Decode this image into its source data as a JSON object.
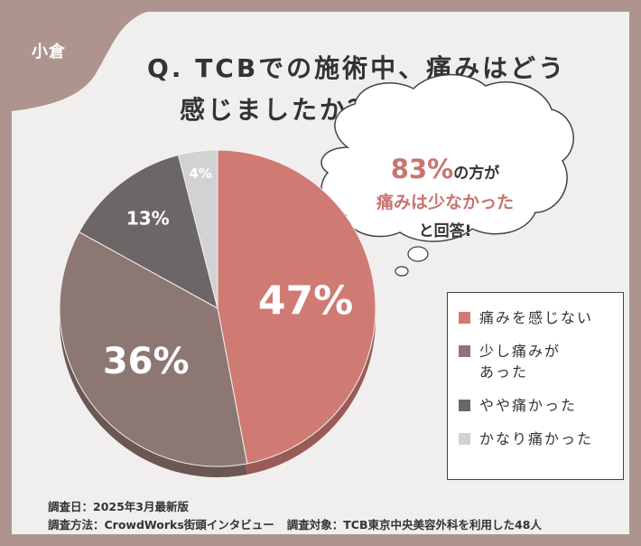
{
  "badge": "小倉",
  "title_line1": "Q. TCBでの施術中、痛みはどう",
  "title_line2": "感じましたか？",
  "callout": {
    "pct": "83%",
    "line1_rest": "の方が",
    "line2": "痛みは少なかった",
    "line3": "と回答!"
  },
  "notes": {
    "date": "調査日：2025年3月最新版",
    "method": "調査方法：CrowdWorks街頭インタビュー",
    "target": "調査対象：TCB東京中央美容外科を利用した48人"
  },
  "colors": {
    "background": "#ad958e",
    "card": "#f1efee",
    "accent": "#c97470"
  },
  "chart_data": {
    "type": "pie",
    "title": "",
    "unit": "%",
    "slices": [
      {
        "label": "痛みを感じない",
        "value": 47,
        "color": "#d07a74",
        "shadow": "#9a5a55"
      },
      {
        "label": "少し痛みがあった",
        "label_lines": [
          "少し痛みが",
          "あった"
        ],
        "value": 36,
        "color": "#8d7773",
        "shadow": "#6a5753"
      },
      {
        "label": "やや痛かった",
        "value": 13,
        "color": "#6d6666",
        "shadow": "#4f4949"
      },
      {
        "label": "かなり痛かった",
        "value": 4,
        "color": "#d2d2d2",
        "shadow": "#a8a8a8"
      }
    ],
    "legend_position": "right"
  }
}
